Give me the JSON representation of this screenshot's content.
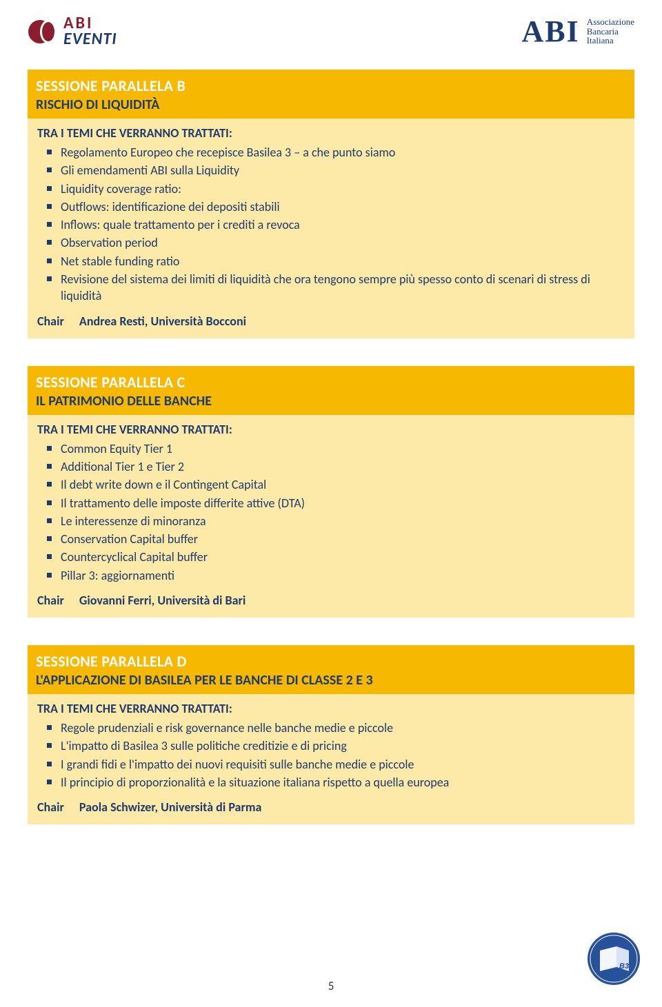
{
  "colors": {
    "amber_primary": "#f6b800",
    "amber_secondary": "#fbd65a",
    "amber_body": "#fde9a8",
    "navy": "#1f3b6e",
    "maroon": "#8b1e2e",
    "white": "#ffffff",
    "black": "#1a1a1a",
    "badge_blue": "#27519a"
  },
  "header": {
    "left_logo": {
      "line1": "ABI",
      "line2": "EVENTI"
    },
    "right_logo": {
      "brand": "ABI",
      "tag1": "Associazione",
      "tag2": "Bancaria",
      "tag3": "Italiana"
    }
  },
  "sessions": [
    {
      "title": "SESSIONE PARALLELA B",
      "subtitle": "RISCHIO DI LIQUIDITÀ",
      "subtitle_color": "#1f3b6e",
      "head_bg": "#f6b800",
      "body_bg": "#fde9a8",
      "topics_heading": "TRA I TEMI CHE VERRANNO TRATTATI:",
      "topics_heading_color": "#1f3b6e",
      "topic_color": "#1f3b6e",
      "bullets": [
        "Regolamento Europeo che recepisce Basilea 3 – a che punto siamo",
        "Gli emendamenti ABI sulla Liquidity",
        "Liquidity coverage ratio:",
        "Outflows: identificazione dei depositi stabili",
        "Inflows: quale trattamento per i crediti a revoca",
        "Observation period",
        "Net stable funding ratio",
        "Revisione del sistema dei limiti di liquidità che ora tengono sempre più spesso conto di scenari di stress di liquidità"
      ],
      "chair_label": "Chair",
      "chair_name": "Andrea Resti, Università Bocconi"
    },
    {
      "title": "SESSIONE PARALLELA C",
      "subtitle": "IL PATRIMONIO DELLE BANCHE",
      "subtitle_color": "#1f3b6e",
      "head_bg": "#f6b800",
      "body_bg": "#fde9a8",
      "topics_heading": "TRA I TEMI CHE VERRANNO TRATTATI:",
      "topics_heading_color": "#1f3b6e",
      "topic_color": "#1f3b6e",
      "bullets": [
        "Common Equity Tier 1",
        "Additional Tier 1 e Tier 2",
        "Il debt write down e il Contingent Capital",
        "Il trattamento delle imposte differite attive (DTA)",
        "Le interessenze di minoranza",
        "Conservation Capital buffer",
        "Countercyclical Capital buffer",
        "Pillar 3: aggiornamenti"
      ],
      "chair_label": "Chair",
      "chair_name": "Giovanni Ferri, Università di Bari"
    },
    {
      "title": "SESSIONE PARALLELA D",
      "subtitle": "L'APPLICAZIONE DI BASILEA PER LE BANCHE DI CLASSE 2 E 3",
      "subtitle_color": "#1f3b6e",
      "head_bg": "#f6b800",
      "body_bg": "#fde9a8",
      "topics_heading": "TRA I TEMI CHE VERRANNO TRATTATI:",
      "topics_heading_color": "#1f3b6e",
      "topic_color": "#1f3b6e",
      "bullets": [
        "Regole prudenziali e risk governance nelle banche medie e piccole",
        "L'impatto di Basilea 3 sulle politiche creditizie e di pricing",
        "I grandi fidi e l'impatto dei nuovi requisiti sulle banche medie e piccole",
        "Il principio di proporzionalità e la situazione italiana rispetto a quella europea"
      ],
      "chair_label": "Chair",
      "chair_name": "Paola Schwizer, Università di Parma"
    }
  ],
  "page_number": "5",
  "badge_label": "B3"
}
